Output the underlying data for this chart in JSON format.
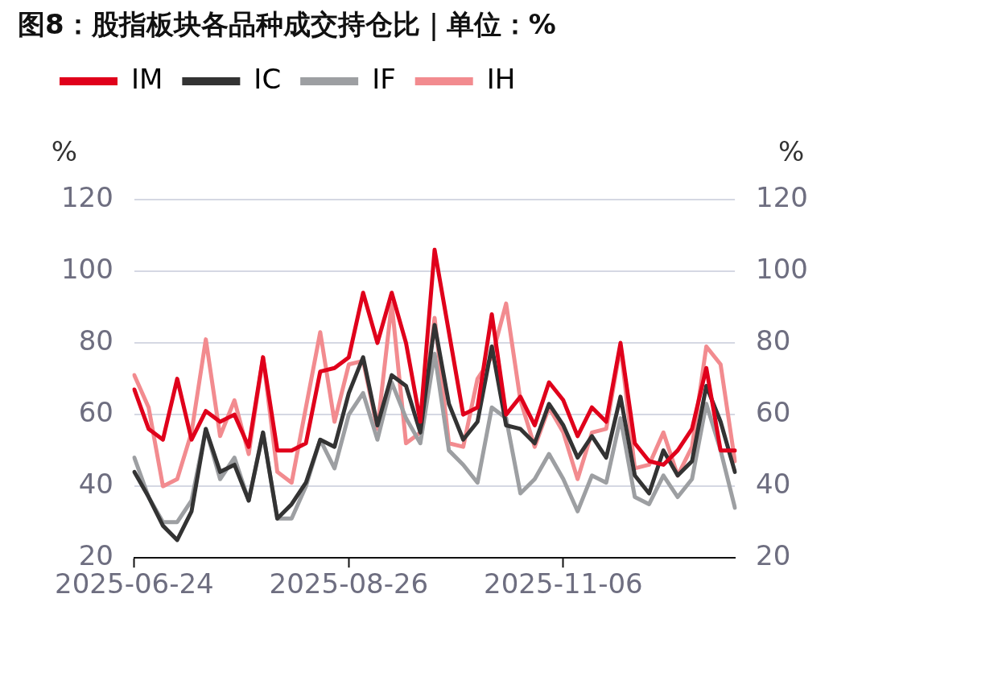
{
  "chart_data": {
    "type": "line",
    "title": "图8：股指板块各品种成交持仓比｜单位：%",
    "ylabel": "%",
    "y2label": "%",
    "categories": [
      "2025-06-24",
      null,
      null,
      null,
      null,
      null,
      null,
      null,
      null,
      null,
      null,
      null,
      null,
      null,
      null,
      "2025-08-26",
      null,
      null,
      null,
      null,
      null,
      null,
      null,
      null,
      null,
      null,
      null,
      null,
      null,
      null,
      "2025-11-06",
      null,
      null,
      null,
      null,
      null,
      null,
      null,
      null,
      null,
      null,
      null,
      null
    ],
    "series": [
      {
        "name": "IM",
        "color": "#e0001b",
        "values": [
          67,
          56,
          53,
          70,
          53,
          61,
          58,
          60,
          51,
          76,
          50,
          50,
          52,
          72,
          73,
          76,
          94,
          80,
          94,
          80,
          58,
          106,
          83,
          60,
          62,
          88,
          60,
          65,
          57,
          69,
          64,
          54,
          62,
          58,
          80,
          52,
          47,
          46,
          50,
          56,
          73,
          50,
          50
        ]
      },
      {
        "name": "IC",
        "color": "#333333",
        "values": [
          44,
          37,
          29,
          25,
          33,
          56,
          44,
          46,
          36,
          55,
          31,
          35,
          41,
          53,
          51,
          66,
          76,
          57,
          71,
          68,
          55,
          85,
          63,
          53,
          58,
          79,
          57,
          56,
          52,
          63,
          57,
          48,
          54,
          48,
          65,
          43,
          38,
          50,
          43,
          47,
          68,
          58,
          44
        ]
      },
      {
        "name": "IF",
        "color": "#9d9fa2",
        "values": [
          48,
          37,
          30,
          30,
          36,
          56,
          42,
          48,
          36,
          55,
          31,
          31,
          40,
          53,
          45,
          60,
          66,
          53,
          69,
          59,
          52,
          77,
          50,
          46,
          41,
          62,
          59,
          38,
          42,
          49,
          42,
          33,
          43,
          41,
          59,
          37,
          35,
          43,
          37,
          42,
          63,
          50,
          34
        ]
      },
      {
        "name": "IH",
        "color": "#f28b8f",
        "values": [
          71,
          62,
          40,
          42,
          55,
          81,
          54,
          64,
          49,
          76,
          44,
          41,
          62,
          83,
          58,
          74,
          75,
          56,
          91,
          52,
          55,
          87,
          52,
          51,
          70,
          76,
          91,
          64,
          51,
          62,
          55,
          42,
          55,
          56,
          79,
          45,
          46,
          55,
          43,
          51,
          79,
          74,
          47
        ]
      }
    ],
    "ylim": [
      20,
      120
    ],
    "yticks": [
      20,
      40,
      60,
      80,
      100,
      120
    ],
    "y2lim": [
      20,
      120
    ],
    "y2ticks": [
      20,
      40,
      60,
      80,
      100,
      120
    ],
    "grid": "y",
    "legend": "top left",
    "marker": "none",
    "line_style": "solid"
  }
}
